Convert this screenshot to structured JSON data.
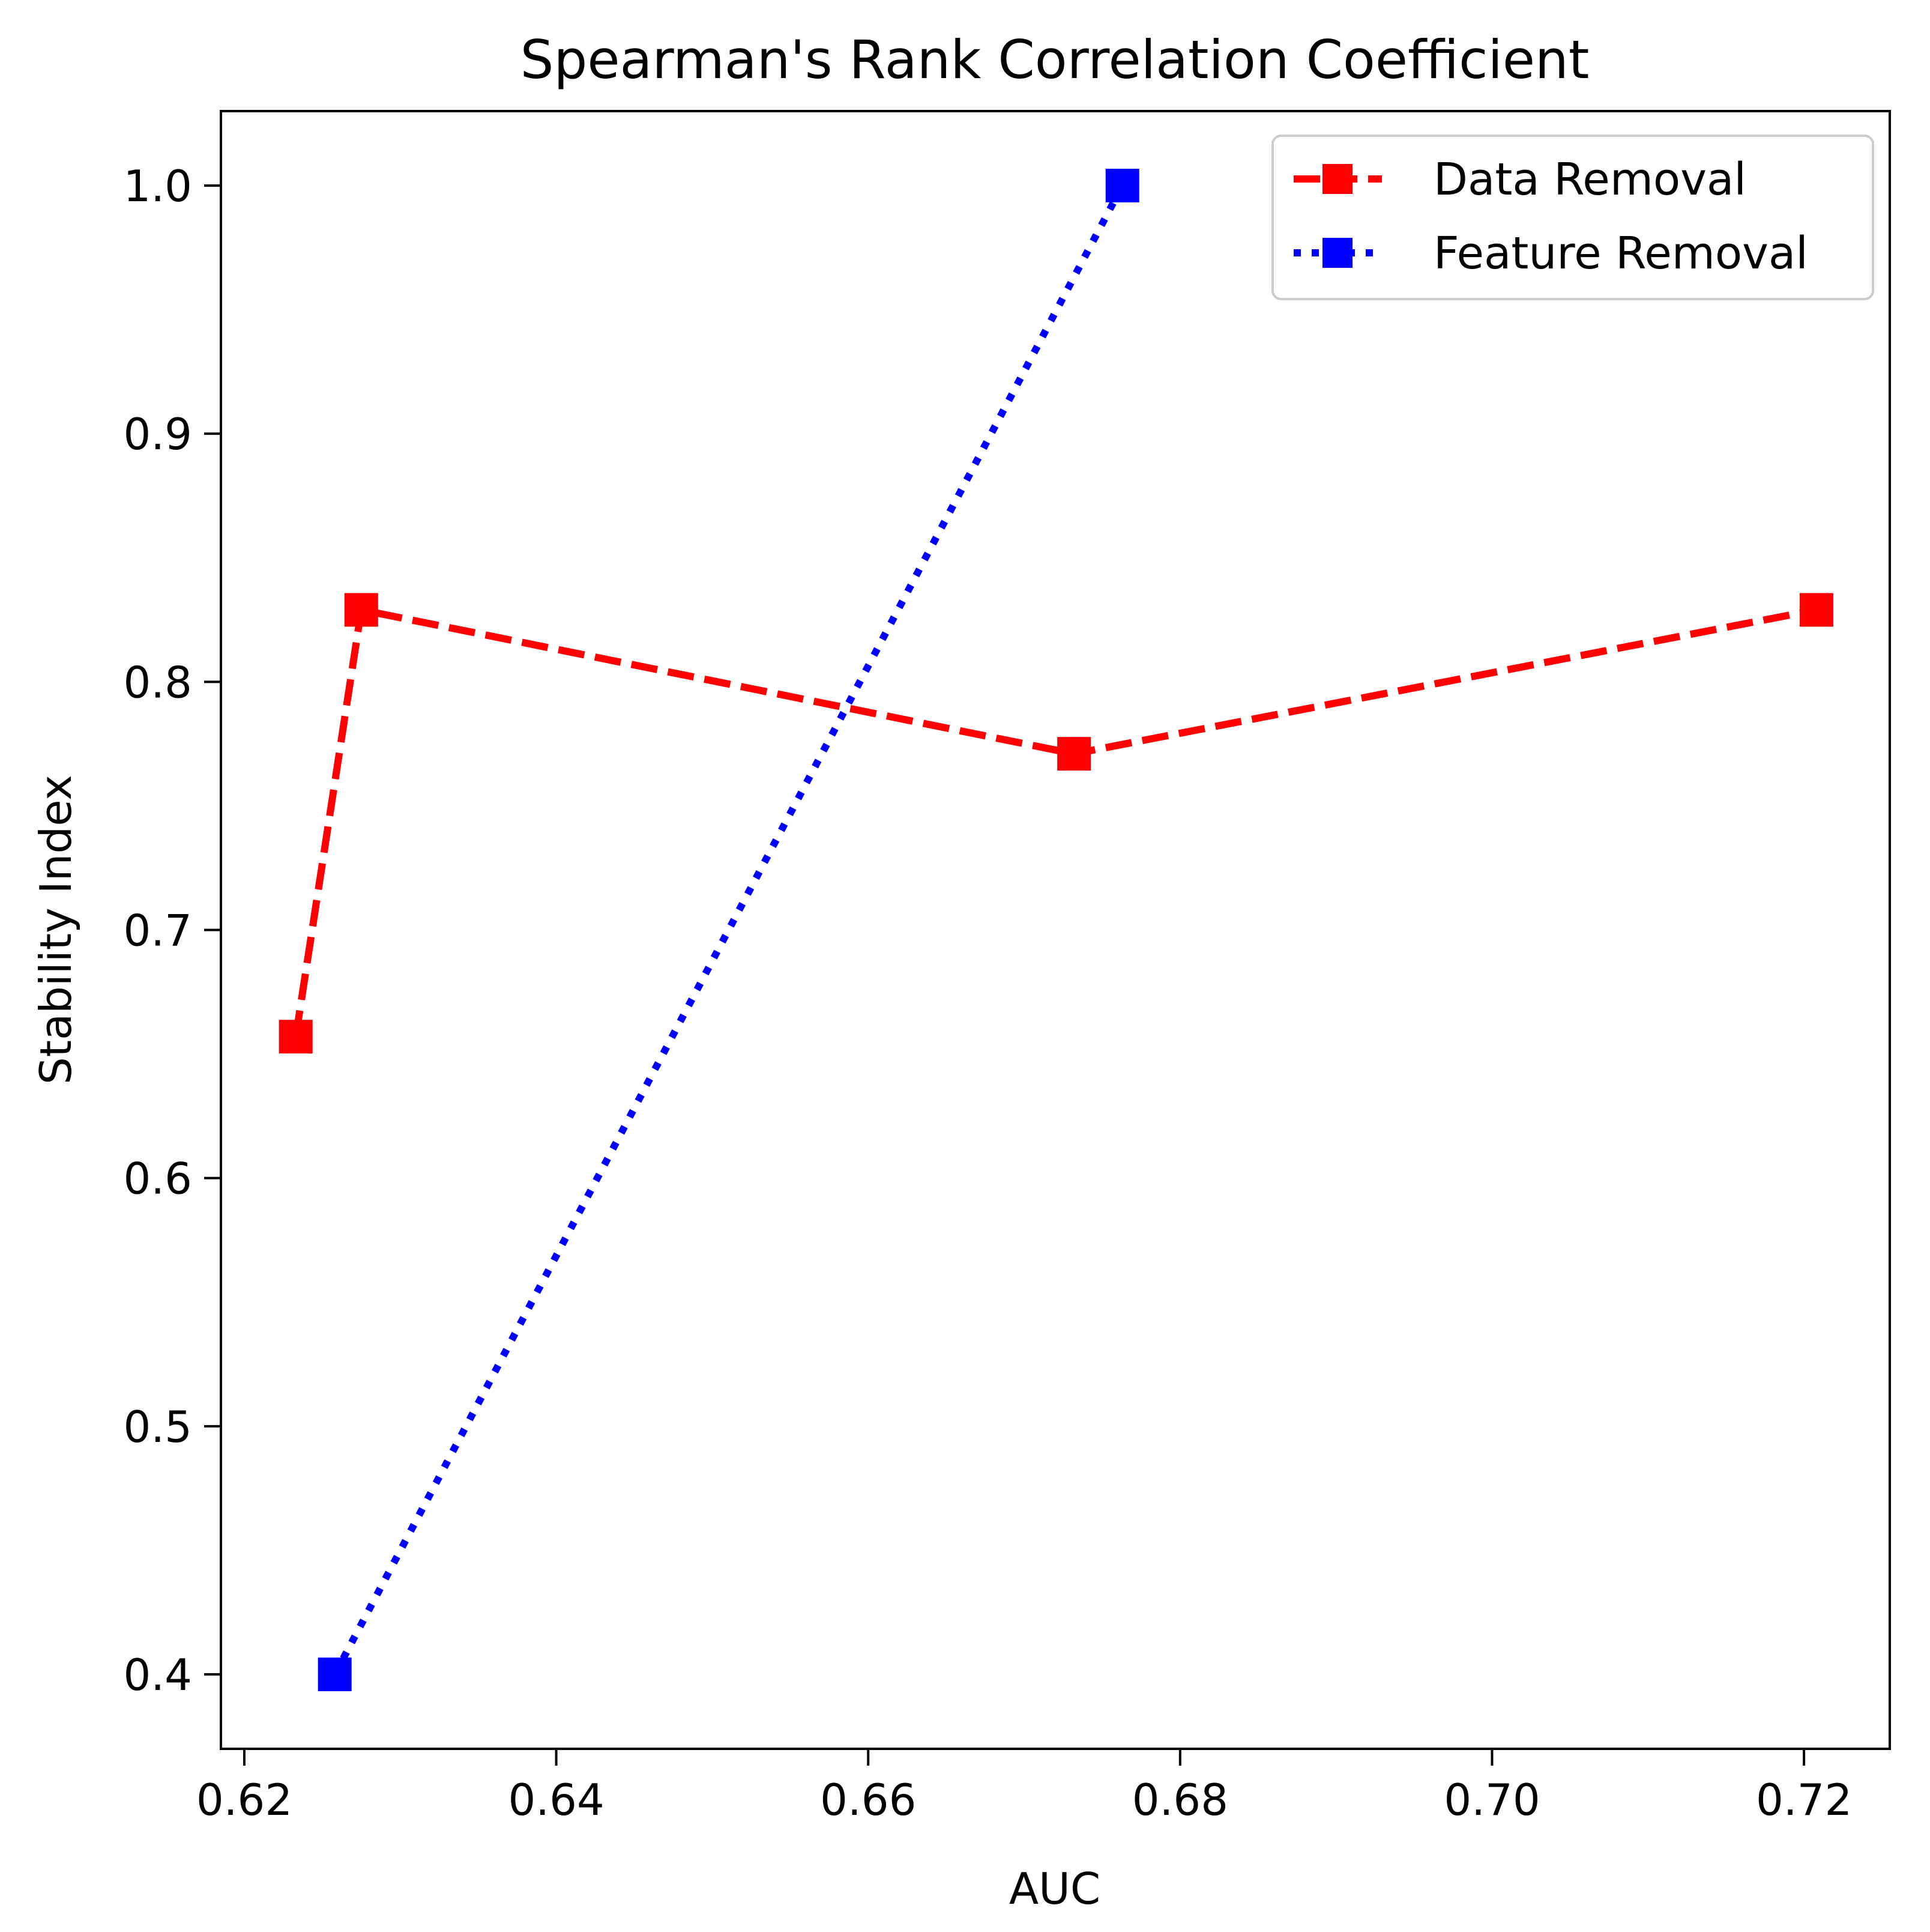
{
  "chart_data": {
    "type": "line",
    "title": "Spearman's Rank Correlation Coefficient",
    "xlabel": "AUC",
    "ylabel": "Stability Index",
    "xlim": [
      0.6185,
      0.7255
    ],
    "ylim": [
      0.37,
      1.03
    ],
    "x_ticks": [
      0.62,
      0.64,
      0.66,
      0.68,
      0.7,
      0.72
    ],
    "x_tick_labels": [
      "0.62",
      "0.64",
      "0.66",
      "0.68",
      "0.70",
      "0.72"
    ],
    "y_ticks": [
      0.4,
      0.5,
      0.6,
      0.7,
      0.8,
      0.9,
      1.0
    ],
    "y_tick_labels": [
      "0.4",
      "0.5",
      "0.6",
      "0.7",
      "0.8",
      "0.9",
      "1.0"
    ],
    "grid": false,
    "legend_position": "top-right",
    "series": [
      {
        "name": "Data Removal",
        "color": "#ff0000",
        "line_style": "dashed",
        "marker": "square",
        "x": [
          0.6233,
          0.6275,
          0.6732,
          0.7208
        ],
        "y": [
          0.657,
          0.829,
          0.771,
          0.829
        ]
      },
      {
        "name": "Feature Removal",
        "color": "#0000ff",
        "line_style": "dotted",
        "marker": "square",
        "x": [
          0.6258,
          0.6763
        ],
        "y": [
          0.4,
          1.0
        ]
      }
    ]
  }
}
